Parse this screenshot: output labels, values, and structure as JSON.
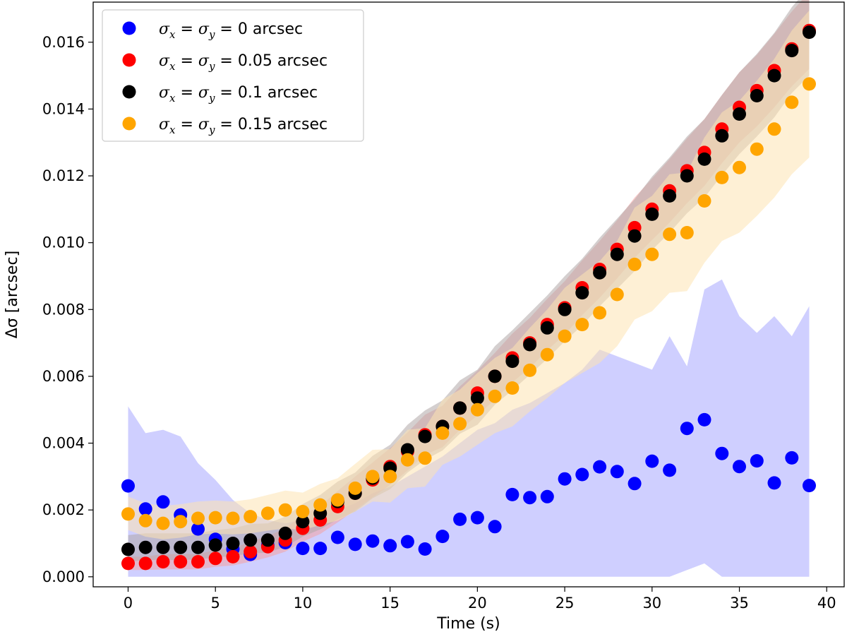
{
  "chart_data": {
    "type": "scatter",
    "title": "",
    "xlabel": "Time (s)",
    "ylabel": "Δσ [arcsec]",
    "xlim": [
      -2,
      41
    ],
    "ylim": [
      -0.0003,
      0.0172
    ],
    "xticks": [
      0,
      5,
      10,
      15,
      20,
      25,
      30,
      35,
      40
    ],
    "yticks": [
      0.0,
      0.002,
      0.004,
      0.006,
      0.008,
      0.01,
      0.012,
      0.014,
      0.016
    ],
    "xtick_labels": [
      "0",
      "5",
      "10",
      "15",
      "20",
      "25",
      "30",
      "35",
      "40"
    ],
    "ytick_labels": [
      "0.000",
      "0.002",
      "0.004",
      "0.006",
      "0.008",
      "0.010",
      "0.012",
      "0.014",
      "0.016"
    ],
    "grid": false,
    "legend_position": "top-left",
    "x": [
      0,
      1,
      2,
      3,
      4,
      5,
      6,
      7,
      8,
      9,
      10,
      11,
      12,
      13,
      14,
      15,
      16,
      17,
      18,
      19,
      20,
      21,
      22,
      23,
      24,
      25,
      26,
      27,
      28,
      29,
      30,
      31,
      32,
      33,
      34,
      35,
      36,
      37,
      38,
      39
    ],
    "series": [
      {
        "name": "σx = σy = 0 arcsec",
        "legend": {
          "symbol": "σ",
          "sub_x": "x",
          "eq": " = ",
          "sub_y": "y",
          "value": " = 0",
          "unit": " arcsec"
        },
        "color": "#0000ff",
        "band_color": "#ccccff",
        "values": [
          0.00272,
          0.00203,
          0.00224,
          0.00185,
          0.00143,
          0.00112,
          0.00083,
          0.00067,
          0.00094,
          0.00102,
          0.00085,
          0.00085,
          0.00118,
          0.00097,
          0.00107,
          0.00093,
          0.00105,
          0.00083,
          0.00121,
          0.00172,
          0.00177,
          0.0015,
          0.00246,
          0.00237,
          0.0024,
          0.00293,
          0.00306,
          0.00329,
          0.00315,
          0.00279,
          0.00346,
          0.00319,
          0.00444,
          0.0047,
          0.00369,
          0.0033,
          0.00347,
          0.00281,
          0.00356,
          0.00273
        ],
        "lower": [
          0.0,
          0.0,
          0.0,
          0.0,
          0.0,
          0.0,
          0.0,
          0.0,
          0.0,
          0.0,
          0.0,
          0.0,
          0.0,
          0.0,
          0.0,
          0.0,
          0.0,
          0.0,
          0.0,
          0.0,
          0.0,
          0.0,
          0.0,
          0.0,
          0.0,
          0.0,
          0.0,
          0.0,
          0.0,
          0.0,
          0.0,
          0.0,
          0.0002,
          0.0004,
          0.0,
          0.0,
          0.0,
          0.0,
          0.0,
          0.0
        ],
        "upper": [
          0.0051,
          0.0043,
          0.0044,
          0.0042,
          0.0034,
          0.0029,
          0.0023,
          0.0019,
          0.0017,
          0.0016,
          0.0017,
          0.0018,
          0.002,
          0.0022,
          0.0025,
          0.0027,
          0.003,
          0.0033,
          0.0036,
          0.004,
          0.0044,
          0.0046,
          0.005,
          0.0052,
          0.0055,
          0.0058,
          0.0062,
          0.0068,
          0.0066,
          0.0064,
          0.0062,
          0.0072,
          0.0063,
          0.0086,
          0.0089,
          0.0078,
          0.0073,
          0.0078,
          0.0072,
          0.0081
        ]
      },
      {
        "name": "σx = σy = 0.05 arcsec",
        "legend": {
          "symbol": "σ",
          "sub_x": "x",
          "eq": " = ",
          "sub_y": "y",
          "value": " = 0.05",
          "unit": " arcsec"
        },
        "color": "#ff0000",
        "band_color": "#f4a3a3",
        "values": [
          0.0004,
          0.0004,
          0.00045,
          0.00045,
          0.00045,
          0.00055,
          0.0006,
          0.00075,
          0.0009,
          0.0011,
          0.00145,
          0.0017,
          0.0021,
          0.0025,
          0.0029,
          0.0033,
          0.00375,
          0.00425,
          0.0045,
          0.00505,
          0.0055,
          0.006,
          0.00655,
          0.007,
          0.00755,
          0.00805,
          0.00865,
          0.0092,
          0.0098,
          0.01045,
          0.011,
          0.01155,
          0.01215,
          0.0127,
          0.0134,
          0.01405,
          0.01455,
          0.01515,
          0.0158,
          0.01635
        ],
        "lower": [
          0.0002,
          0.0002,
          0.00022,
          0.00022,
          0.00022,
          0.0003,
          0.00034,
          0.00045,
          0.00058,
          0.00075,
          0.00105,
          0.00128,
          0.00163,
          0.002,
          0.00238,
          0.00275,
          0.00318,
          0.00365,
          0.00388,
          0.0044,
          0.00483,
          0.0053,
          0.00582,
          0.00625,
          0.00678,
          0.00725,
          0.00783,
          0.00835,
          0.00893,
          0.00955,
          0.01008,
          0.0106,
          0.01118,
          0.0117,
          0.01238,
          0.013,
          0.01348,
          0.01405,
          0.01468,
          0.0152
        ],
        "upper": [
          0.0006,
          0.0006,
          0.00068,
          0.00068,
          0.00068,
          0.0008,
          0.00086,
          0.00105,
          0.00122,
          0.00145,
          0.00185,
          0.00212,
          0.00257,
          0.003,
          0.00342,
          0.00385,
          0.00432,
          0.00485,
          0.00512,
          0.0057,
          0.00617,
          0.0067,
          0.00728,
          0.00775,
          0.00832,
          0.00885,
          0.00947,
          0.01005,
          0.01067,
          0.01135,
          0.01192,
          0.0125,
          0.01312,
          0.0137,
          0.01442,
          0.0151,
          0.01562,
          0.01625,
          0.01692,
          0.0175
        ]
      },
      {
        "name": "σx = σy = 0.1 arcsec",
        "legend": {
          "symbol": "σ",
          "sub_x": "x",
          "eq": " = ",
          "sub_y": "y",
          "value": " = 0.1",
          "unit": " arcsec"
        },
        "color": "#000000",
        "band_color": "#b0a8a8",
        "values": [
          0.00082,
          0.00088,
          0.00088,
          0.00088,
          0.00088,
          0.00095,
          0.001,
          0.0011,
          0.0011,
          0.0013,
          0.00165,
          0.0019,
          0.00225,
          0.0025,
          0.00295,
          0.00325,
          0.0038,
          0.0042,
          0.0045,
          0.00505,
          0.00535,
          0.006,
          0.00645,
          0.00695,
          0.00745,
          0.008,
          0.0085,
          0.0091,
          0.00965,
          0.0102,
          0.01085,
          0.0114,
          0.012,
          0.0125,
          0.0132,
          0.01385,
          0.0144,
          0.015,
          0.01575,
          0.0163
        ],
        "lower": [
          0.00045,
          0.0005,
          0.0005,
          0.0005,
          0.00052,
          0.00058,
          0.00062,
          0.0007,
          0.00072,
          0.0009,
          0.0012,
          0.00142,
          0.00172,
          0.00195,
          0.00235,
          0.00262,
          0.00312,
          0.0035,
          0.00378,
          0.00428,
          0.00455,
          0.00515,
          0.00558,
          0.00605,
          0.00652,
          0.00705,
          0.00752,
          0.0081,
          0.00862,
          0.00915,
          0.00978,
          0.0103,
          0.01088,
          0.01135,
          0.01202,
          0.01265,
          0.01318,
          0.01375,
          0.01448,
          0.015
        ],
        "upper": [
          0.00125,
          0.0013,
          0.0013,
          0.0013,
          0.0013,
          0.0014,
          0.00145,
          0.00158,
          0.0016,
          0.0018,
          0.00218,
          0.00245,
          0.00285,
          0.00312,
          0.00362,
          0.00395,
          0.00455,
          0.00498,
          0.00528,
          0.00588,
          0.0062,
          0.0069,
          0.00738,
          0.0079,
          0.00842,
          0.009,
          0.00952,
          0.01015,
          0.01072,
          0.0113,
          0.01198,
          0.01255,
          0.01318,
          0.0137,
          0.01442,
          0.0151,
          0.01565,
          0.01628,
          0.01705,
          0.01765
        ]
      },
      {
        "name": "σx = σy = 0.15 arcsec",
        "legend": {
          "symbol": "σ",
          "sub_x": "x",
          "eq": " = ",
          "sub_y": "y",
          "value": " = 0.15",
          "unit": " arcsec"
        },
        "color": "#ffa500",
        "band_color": "#fde4b2",
        "values": [
          0.00188,
          0.00168,
          0.0016,
          0.00165,
          0.00175,
          0.00177,
          0.00175,
          0.0018,
          0.0019,
          0.002,
          0.00195,
          0.00215,
          0.0023,
          0.00265,
          0.003,
          0.003,
          0.0035,
          0.00355,
          0.0043,
          0.00458,
          0.005,
          0.0054,
          0.00565,
          0.00618,
          0.00665,
          0.0072,
          0.00755,
          0.0079,
          0.00845,
          0.00935,
          0.00965,
          0.01025,
          0.0103,
          0.01125,
          0.01195,
          0.01225,
          0.0128,
          0.0134,
          0.0142,
          0.01475
        ],
        "lower": [
          0.0014,
          0.0012,
          0.00112,
          0.00117,
          0.00127,
          0.00129,
          0.00127,
          0.0013,
          0.00138,
          0.00145,
          0.0014,
          0.00155,
          0.00168,
          0.00195,
          0.00225,
          0.00222,
          0.00265,
          0.0027,
          0.00335,
          0.0036,
          0.00395,
          0.0043,
          0.0045,
          0.00495,
          0.00535,
          0.0058,
          0.0061,
          0.0064,
          0.0069,
          0.0077,
          0.00795,
          0.0085,
          0.00855,
          0.0094,
          0.01005,
          0.0103,
          0.0108,
          0.01135,
          0.01205,
          0.01255
        ],
        "upper": [
          0.0024,
          0.0022,
          0.00212,
          0.00217,
          0.00225,
          0.00228,
          0.00225,
          0.00232,
          0.00245,
          0.00258,
          0.00252,
          0.00278,
          0.00295,
          0.00338,
          0.0038,
          0.00382,
          0.0044,
          0.00445,
          0.0053,
          0.0056,
          0.0061,
          0.00655,
          0.00685,
          0.00745,
          0.008,
          0.00865,
          0.00905,
          0.00945,
          0.01005,
          0.01105,
          0.0114,
          0.01205,
          0.0121,
          0.01315,
          0.0139,
          0.01425,
          0.01485,
          0.0155,
          0.01635,
          0.01695
        ]
      }
    ]
  }
}
